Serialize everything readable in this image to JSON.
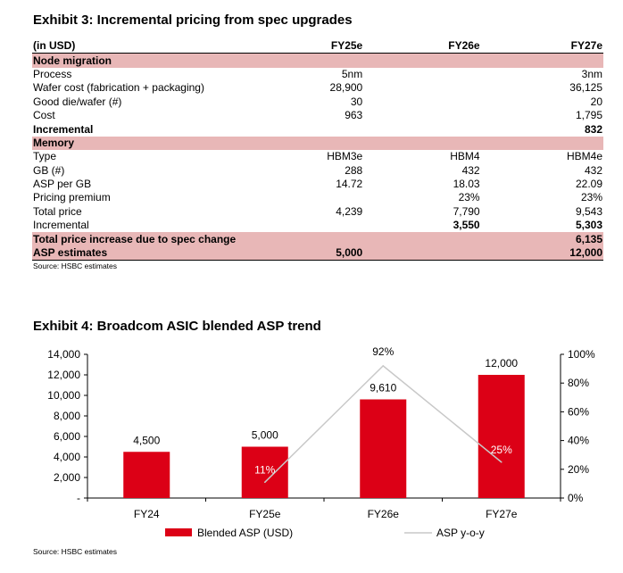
{
  "table": {
    "title": "Exhibit 3: Incremental pricing from spec upgrades",
    "headers": [
      "(in USD)",
      "FY25e",
      "FY26e",
      "FY27e"
    ],
    "rows": [
      {
        "kind": "section",
        "cells": [
          "Node migration",
          "",
          "",
          ""
        ]
      },
      {
        "kind": "normal",
        "cells": [
          "Process",
          "5nm",
          "",
          "3nm"
        ]
      },
      {
        "kind": "normal",
        "cells": [
          "Wafer cost (fabrication + packaging)",
          "28,900",
          "",
          "36,125"
        ]
      },
      {
        "kind": "normal",
        "cells": [
          "Good die/wafer (#)",
          "30",
          "",
          "20"
        ]
      },
      {
        "kind": "normal",
        "cells": [
          "Cost",
          "963",
          "",
          "1,795"
        ]
      },
      {
        "kind": "bold",
        "cells": [
          "Incremental",
          "",
          "",
          "832"
        ]
      },
      {
        "kind": "section",
        "cells": [
          "Memory",
          "",
          "",
          ""
        ]
      },
      {
        "kind": "normal",
        "cells": [
          "Type",
          "HBM3e",
          "HBM4",
          "HBM4e"
        ]
      },
      {
        "kind": "normal",
        "cells": [
          "GB (#)",
          "288",
          "432",
          "432"
        ]
      },
      {
        "kind": "normal",
        "cells": [
          "ASP per GB",
          "14.72",
          "18.03",
          "22.09"
        ]
      },
      {
        "kind": "normal",
        "cells": [
          "Pricing premium",
          "",
          "23%",
          "23%"
        ]
      },
      {
        "kind": "normal",
        "cells": [
          "Total price",
          "4,239",
          "7,790",
          "9,543"
        ]
      },
      {
        "kind": "incr",
        "cells": [
          "Incremental",
          "",
          "3,550",
          "5,303"
        ]
      },
      {
        "kind": "shade",
        "cells": [
          "Total price increase due to spec change",
          "",
          "",
          "6,135"
        ]
      },
      {
        "kind": "shade",
        "cells": [
          "ASP estimates",
          "5,000",
          "",
          "12,000"
        ]
      }
    ],
    "source": "Source: HSBC estimates"
  },
  "chart": {
    "title": "Exhibit 4: Broadcom ASIC blended ASP trend",
    "source": "Source: HSBC estimates"
  },
  "chart_data": {
    "type": "bar",
    "title": "Exhibit 4: Broadcom ASIC blended ASP trend",
    "categories": [
      "FY24",
      "FY25e",
      "FY26e",
      "FY27e"
    ],
    "series": [
      {
        "name": "Blended ASP (USD)",
        "type": "bar",
        "axis": "left",
        "color": "#dc0016",
        "values": [
          4500,
          5000,
          9610,
          12000
        ],
        "labels": [
          "4,500",
          "5,000",
          "9,610",
          "12,000"
        ]
      },
      {
        "name": "ASP y-o-y",
        "type": "line",
        "axis": "right",
        "color": "#c8c8c8",
        "values": [
          null,
          11,
          92,
          25
        ],
        "labels": [
          "",
          "11%",
          "92%",
          "25%"
        ]
      }
    ],
    "y_left": {
      "min": 0,
      "max": 14000,
      "ticks": [
        0,
        2000,
        4000,
        6000,
        8000,
        10000,
        12000,
        14000
      ],
      "tick_labels": [
        "-",
        "2,000",
        "4,000",
        "6,000",
        "8,000",
        "10,000",
        "12,000",
        "14,000"
      ]
    },
    "y_right": {
      "min": 0,
      "max": 100,
      "ticks": [
        0,
        20,
        40,
        60,
        80,
        100
      ],
      "tick_labels": [
        "0%",
        "20%",
        "40%",
        "60%",
        "80%",
        "100%"
      ]
    },
    "legend": "bottom"
  }
}
